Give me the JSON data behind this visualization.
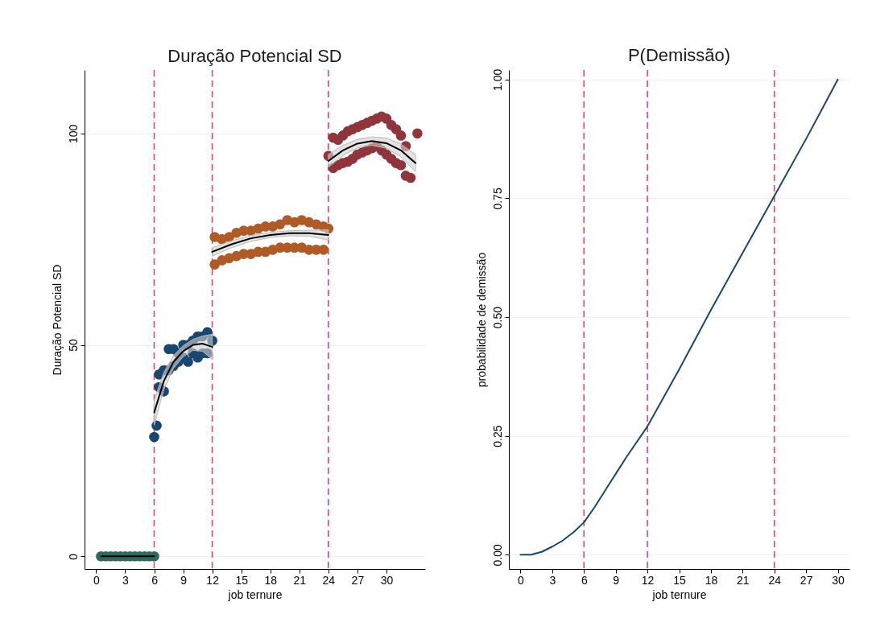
{
  "chart_data": [
    {
      "type": "scatter",
      "title": "Duração Potencial SD",
      "xlabel": "job ternure",
      "ylabel": "Duração Potencial SD",
      "xlim": [
        -1.2,
        34
      ],
      "ylim": [
        -3,
        115
      ],
      "xticks": [
        0,
        3,
        6,
        9,
        12,
        15,
        18,
        21,
        24,
        27,
        30
      ],
      "yticks": [
        0,
        50,
        100
      ],
      "grid": "y",
      "marker": "circle",
      "ref_lines": [
        {
          "axis": "x",
          "value": 6,
          "color": "#e0486e",
          "line_style": "dashed"
        },
        {
          "axis": "x",
          "value": 12,
          "color": "#e0486e",
          "line_style": "dashed"
        },
        {
          "axis": "x",
          "value": 24,
          "color": "#e0486e",
          "line_style": "dashed"
        }
      ],
      "series": [
        {
          "color": "#2e6b5e",
          "x": [
            0.5,
            1,
            1.5,
            2,
            2.5,
            3,
            3.5,
            4,
            4.5,
            5,
            5.5,
            6
          ],
          "values": [
            0,
            0,
            0,
            0,
            0,
            0,
            0,
            0,
            0,
            0,
            0,
            0
          ]
        },
        {
          "color": "#1a476f",
          "x": [
            6,
            6.25,
            6.5,
            6.5,
            7,
            7,
            7.5,
            7.5,
            8,
            8,
            8.5,
            8.5,
            9,
            9,
            9.5,
            9.5,
            10,
            10,
            10.5,
            10.5,
            11,
            11,
            11.5,
            11.5,
            12
          ],
          "values": [
            28.2,
            30.9,
            43,
            40,
            44,
            39,
            49,
            44,
            49,
            45,
            48,
            46,
            50,
            47,
            50,
            46,
            51,
            48,
            52,
            47,
            52,
            48,
            53,
            48,
            51
          ]
        },
        {
          "color": "#b05a26",
          "x": [
            12.25,
            13,
            13.75,
            14.5,
            15.25,
            16,
            16.75,
            17.5,
            18.25,
            19,
            19.75,
            20.5,
            21.25,
            22,
            22.75,
            23.5,
            12.25,
            13,
            13.75,
            14.5,
            15.25,
            16,
            16.75,
            17.5,
            18.25,
            19,
            19.75,
            20.5,
            21.25,
            22,
            22.75,
            23.5,
            24
          ],
          "values": [
            75.5,
            75,
            75.5,
            76.5,
            77,
            77,
            77.5,
            78,
            78,
            78.5,
            79.5,
            79,
            79.5,
            79,
            78.5,
            78,
            69,
            70,
            70.5,
            71,
            71.5,
            71.5,
            72,
            72,
            72.5,
            73,
            73,
            73,
            73,
            72.5,
            72.5,
            72.5,
            77.5
          ]
        },
        {
          "color": "#90353b",
          "x": [
            24.5,
            25,
            25.5,
            26,
            26.5,
            27,
            27.5,
            28,
            28.5,
            29,
            29.5,
            30,
            30.5,
            31,
            31.5,
            32,
            33.2,
            24,
            24.5,
            25,
            25.5,
            26,
            26.5,
            27,
            27.5,
            28,
            28.5,
            29,
            29.5,
            30,
            30.5,
            31,
            31.5,
            32,
            32.5
          ],
          "values": [
            99,
            98.5,
            99.5,
            100.5,
            101,
            101.5,
            102,
            102.5,
            103,
            103.5,
            104,
            103.5,
            102,
            101,
            99.5,
            97,
            100,
            94.7,
            91.8,
            92.5,
            93,
            93.3,
            94,
            95,
            95.5,
            96,
            96.5,
            97,
            96,
            95,
            94,
            93,
            92.5,
            90,
            89.5
          ]
        },
        {
          "type": "line",
          "marker": "none",
          "color": "#000000",
          "x": [
            0.5,
            6
          ],
          "values": [
            0,
            0
          ]
        },
        {
          "type": "line",
          "marker": "none",
          "color": "#000000",
          "x": [
            6,
            7,
            8,
            9,
            10,
            11,
            12
          ],
          "values": [
            34,
            41.5,
            46,
            48.5,
            50,
            50.3,
            49.5
          ],
          "lower": [
            31,
            39.5,
            44.5,
            47.2,
            48.7,
            48.5,
            46.5
          ],
          "upper": [
            37,
            43.5,
            47.5,
            49.8,
            51.3,
            52.1,
            52.5
          ]
        },
        {
          "type": "line",
          "marker": "none",
          "color": "#000000",
          "x": [
            12,
            14,
            16,
            18,
            20,
            22,
            24
          ],
          "values": [
            72,
            73.8,
            75.2,
            76,
            76.4,
            76.4,
            76
          ],
          "lower": [
            71,
            73,
            74.5,
            75.4,
            75.8,
            75.7,
            74.8
          ],
          "upper": [
            73,
            74.6,
            75.9,
            76.6,
            77,
            77.1,
            77.2
          ]
        },
        {
          "type": "line",
          "marker": "none",
          "color": "#000000",
          "x": [
            24,
            25.5,
            27,
            28.5,
            30,
            31.5,
            33
          ],
          "values": [
            93.5,
            96,
            97.6,
            98.2,
            97.7,
            96,
            93
          ],
          "lower": [
            92,
            94.8,
            96.6,
            97.2,
            96.5,
            94.5,
            91
          ],
          "upper": [
            95,
            97.2,
            98.6,
            99.2,
            98.9,
            97.5,
            95
          ]
        }
      ]
    },
    {
      "type": "line",
      "title": "P(Demissão)",
      "xlabel": "job ternure",
      "ylabel": "probabilidade de demissão",
      "xlim": [
        -1.1,
        31.1
      ],
      "ylim": [
        -0.03,
        1.02
      ],
      "xticks": [
        0,
        3,
        6,
        9,
        12,
        15,
        18,
        21,
        24,
        27,
        30
      ],
      "yticks": [
        {
          "value": 0,
          "label": "0.00"
        },
        {
          "value": 0.25,
          "label": "0.25"
        },
        {
          "value": 0.5,
          "label": "0.50"
        },
        {
          "value": 0.75,
          "label": "0.75"
        },
        {
          "value": 1,
          "label": "1.00"
        }
      ],
      "grid": "y",
      "line_style": "solid",
      "ref_lines": [
        {
          "axis": "x",
          "value": 6,
          "color": "#e0486e",
          "line_style": "dashed"
        },
        {
          "axis": "x",
          "value": 12,
          "color": "#e0486e",
          "line_style": "dashed"
        },
        {
          "axis": "x",
          "value": 24,
          "color": "#e0486e",
          "line_style": "dashed"
        }
      ],
      "series": [
        {
          "color": "#1a476f",
          "x": [
            0,
            1,
            2,
            3,
            4,
            5,
            6,
            7,
            8,
            9,
            10,
            12,
            15,
            18,
            21,
            24,
            27,
            30
          ],
          "values": [
            0,
            0,
            0.006,
            0.017,
            0.03,
            0.047,
            0.068,
            0.1,
            0.135,
            0.17,
            0.205,
            0.27,
            0.39,
            0.515,
            0.635,
            0.755,
            0.875,
            1.0
          ]
        }
      ]
    }
  ]
}
